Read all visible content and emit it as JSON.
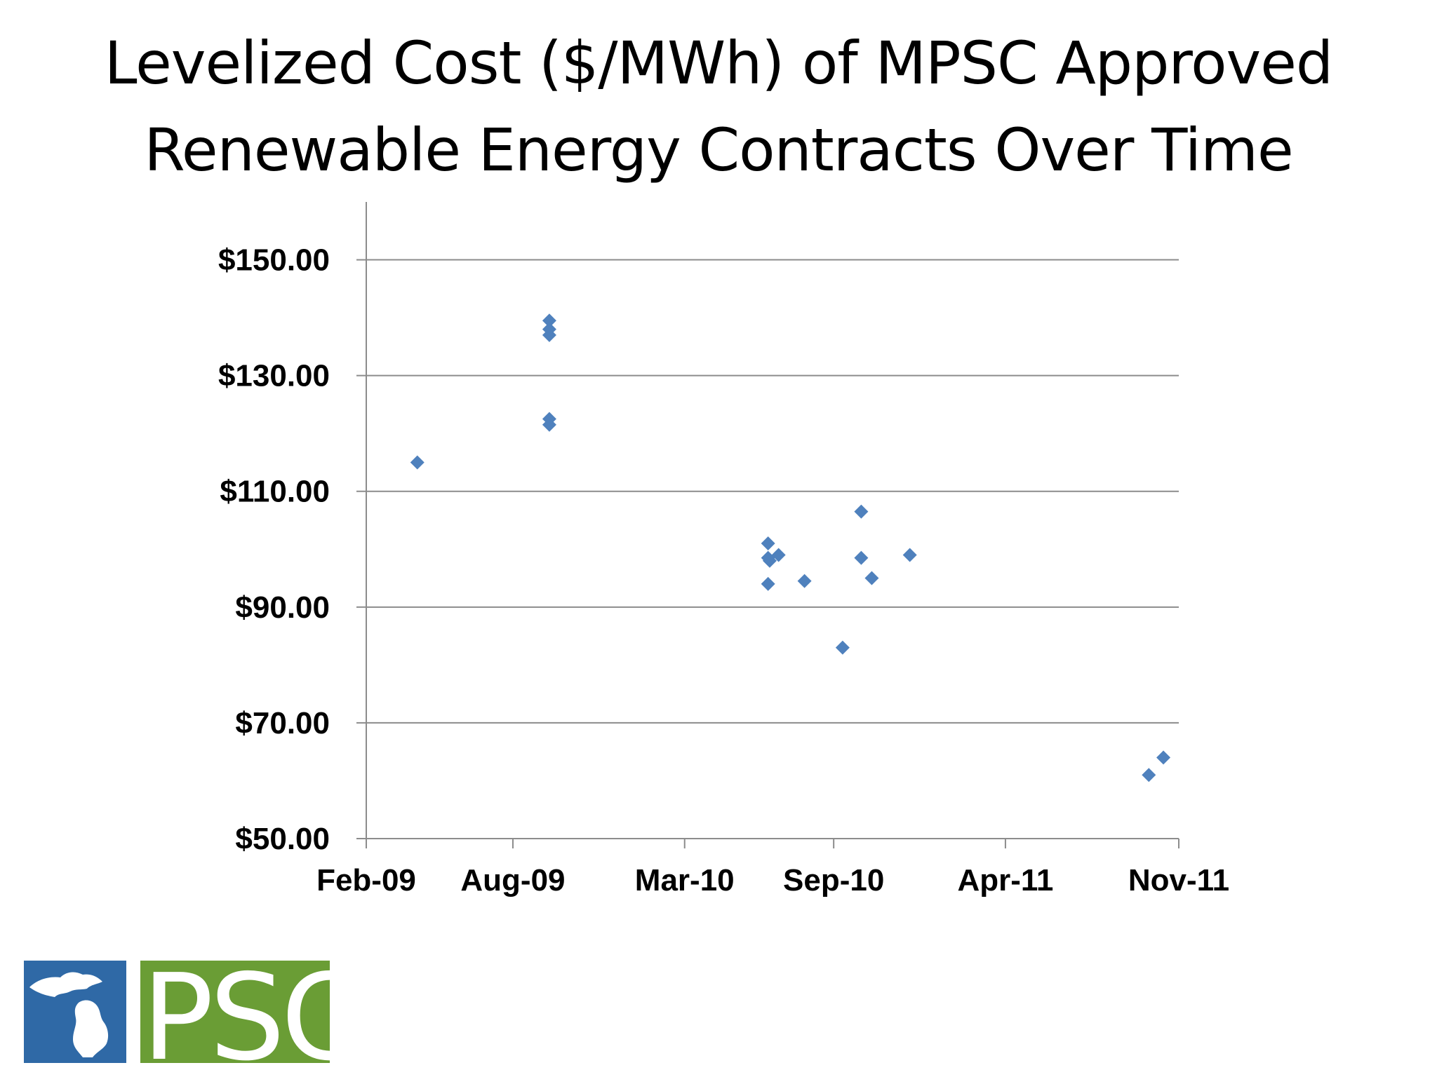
{
  "slide": {
    "title_line1": "Levelized Cost ($/MWh) of MPSC Approved",
    "title_line2": "Renewable Energy Contracts Over Time"
  },
  "logo": {
    "text": "PSC",
    "colors": {
      "blue": "#2f69a6",
      "green": "#6a9d35"
    }
  },
  "chart_data": {
    "type": "scatter",
    "title": "Levelized Cost ($/MWh) of MPSC Approved Renewable Energy Contracts Over Time",
    "xlabel": "",
    "ylabel": "",
    "x_ticks": [
      "Feb-09",
      "Aug-09",
      "Mar-10",
      "Sep-10",
      "Apr-11",
      "Nov-11"
    ],
    "x_tick_dates": [
      "2009-02-01",
      "2009-08-01",
      "2010-03-01",
      "2010-09-01",
      "2011-04-01",
      "2011-11-01"
    ],
    "xlim": [
      "2009-02-01",
      "2011-11-01"
    ],
    "y_ticks": [
      "$50.00",
      "$70.00",
      "$90.00",
      "$110.00",
      "$130.00",
      "$150.00"
    ],
    "y_tick_values": [
      50,
      70,
      90,
      110,
      130,
      150
    ],
    "ylim": [
      50,
      160
    ],
    "grid": "horizontal",
    "legend": "none",
    "marker": "diamond",
    "color": "#4f81bd",
    "series": [
      {
        "points": [
          {
            "x": "2009-04-05",
            "y": 115.0
          },
          {
            "x": "2009-09-15",
            "y": 139.5
          },
          {
            "x": "2009-09-15",
            "y": 138.0
          },
          {
            "x": "2009-09-15",
            "y": 137.0
          },
          {
            "x": "2009-09-15",
            "y": 122.5
          },
          {
            "x": "2009-09-15",
            "y": 121.5
          },
          {
            "x": "2010-06-12",
            "y": 101.0
          },
          {
            "x": "2010-06-12",
            "y": 98.5
          },
          {
            "x": "2010-06-12",
            "y": 94.0
          },
          {
            "x": "2010-06-14",
            "y": 98.0
          },
          {
            "x": "2010-06-25",
            "y": 99.0
          },
          {
            "x": "2010-07-27",
            "y": 94.5
          },
          {
            "x": "2010-09-12",
            "y": 83.0
          },
          {
            "x": "2010-10-05",
            "y": 106.5
          },
          {
            "x": "2010-10-05",
            "y": 98.5
          },
          {
            "x": "2010-10-18",
            "y": 95.0
          },
          {
            "x": "2010-12-04",
            "y": 99.0
          },
          {
            "x": "2011-09-25",
            "y": 61.0
          },
          {
            "x": "2011-10-13",
            "y": 64.0
          }
        ]
      }
    ]
  }
}
